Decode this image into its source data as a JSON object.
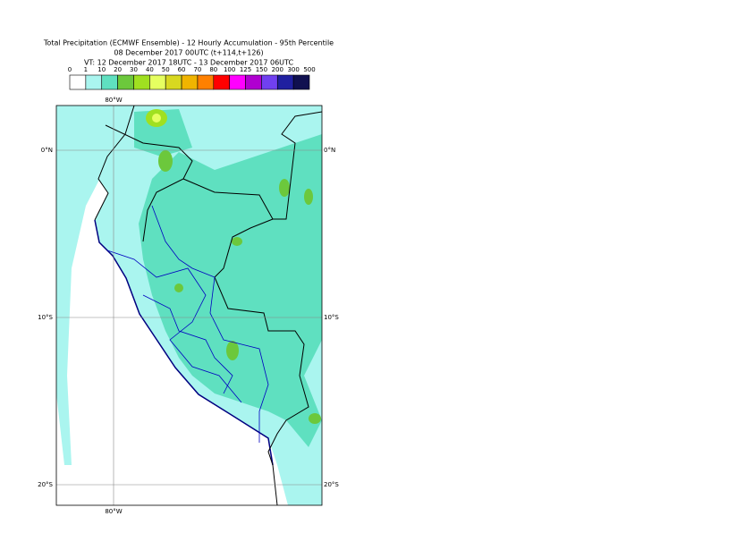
{
  "title_lines": [
    "Total Precipitation (ECMWF Ensemble) - 12 Hourly Accumulation - 95th Percentile",
    "08 December 2017 00UTC (t+114,t+126)",
    "VT: 12 December 2017 18UTC - 13 December 2017 06UTC"
  ],
  "colorbar": {
    "labels": [
      0,
      1,
      10,
      20,
      30,
      40,
      50,
      60,
      70,
      80,
      100,
      125,
      150,
      200,
      300,
      500
    ],
    "colors": [
      "#ffffff",
      "#aaf5ef",
      "#5fe0c0",
      "#6cc83c",
      "#a0e020",
      "#e6ff60",
      "#d8d820",
      "#f0b400",
      "#ff8000",
      "#ff0000",
      "#ff00ff",
      "#b000d0",
      "#7040f0",
      "#2020a0",
      "#101050"
    ]
  },
  "map": {
    "lon_label": "80°W",
    "lat_labels": [
      "0°N",
      "10°S",
      "20°S"
    ]
  }
}
